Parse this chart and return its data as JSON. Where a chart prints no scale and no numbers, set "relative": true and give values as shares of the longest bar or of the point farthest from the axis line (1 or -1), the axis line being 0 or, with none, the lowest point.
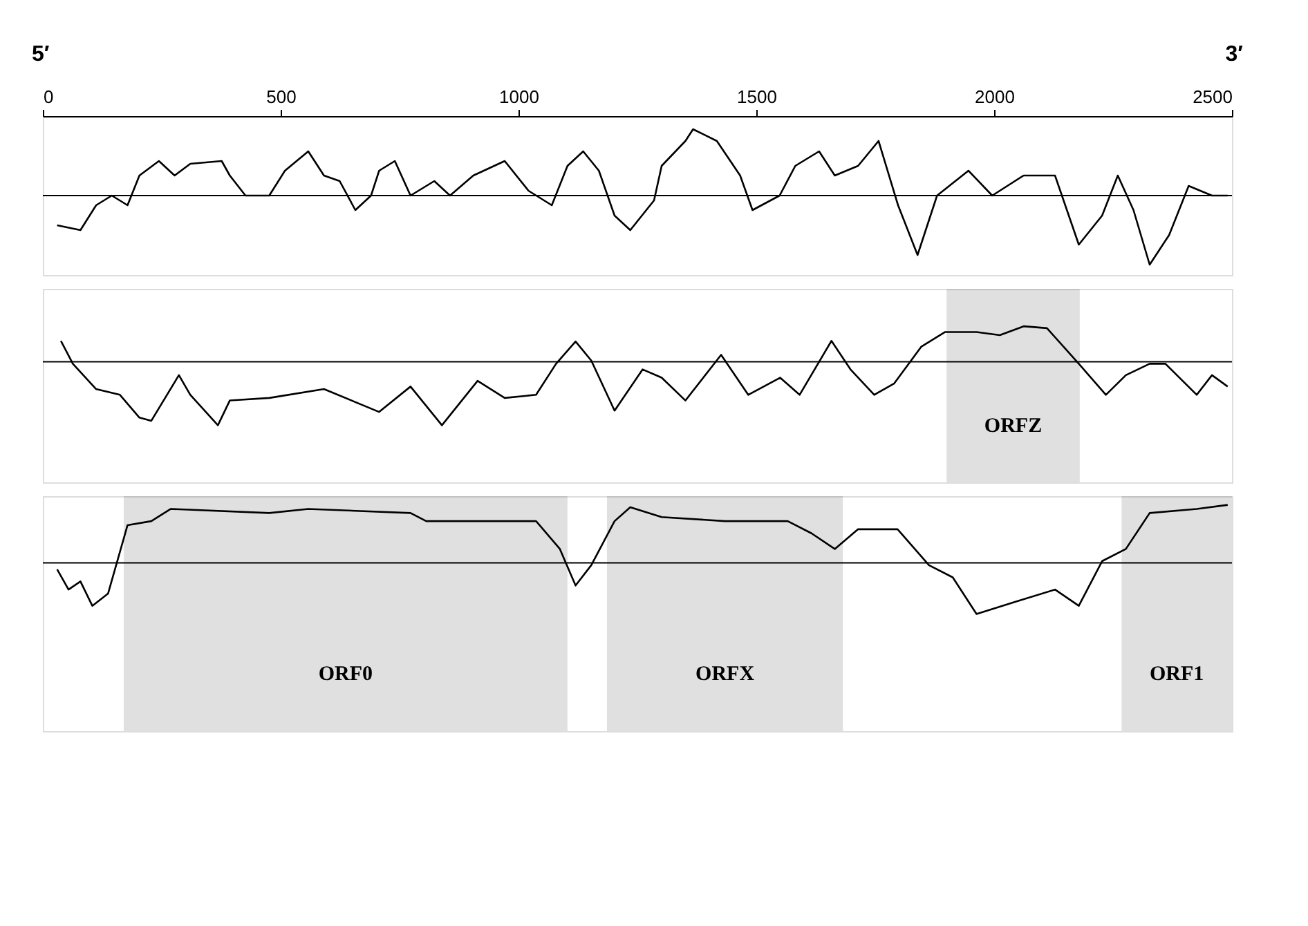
{
  "chart_data": [
    {
      "type": "line",
      "relative": true,
      "xlim": [
        0,
        2500
      ],
      "xticks": [
        0,
        500,
        1000,
        1500,
        2000,
        2500
      ],
      "tick_labels": "x",
      "grid": false,
      "marker": "none",
      "line_style": "solid",
      "annotations": [
        "5′",
        "3′"
      ],
      "ref_lines": [
        {
          "axis": "y",
          "value": 0,
          "label": null,
          "color": "#000000"
        }
      ],
      "series": [
        {
          "color": "#000000",
          "x": [
            30,
            79,
            112,
            145,
            178,
            203,
            244,
            277,
            310,
            376,
            393,
            426,
            476,
            509,
            558,
            591,
            624,
            657,
            690,
            707,
            740,
            773,
            823,
            856,
            905,
            971,
            1021,
            1070,
            1103,
            1136,
            1169,
            1202,
            1235,
            1285,
            1301,
            1351,
            1367,
            1417,
            1466,
            1492,
            1549,
            1582,
            1632,
            1665,
            1714,
            1757,
            1798,
            1839,
            1880,
            1946,
            1996,
            2062,
            2128,
            2178,
            2227,
            2260,
            2293,
            2327,
            2368,
            2409,
            2458,
            2491
          ],
          "values": [
            -0.43,
            -0.5,
            -0.14,
            0,
            -0.14,
            0.29,
            0.5,
            0.29,
            0.46,
            0.5,
            0.29,
            0,
            0,
            0.36,
            0.64,
            0.29,
            0.21,
            -0.21,
            0,
            0.36,
            0.5,
            0,
            0.21,
            0,
            0.29,
            0.5,
            0.07,
            -0.14,
            0.43,
            0.64,
            0.36,
            -0.29,
            -0.5,
            -0.07,
            0.43,
            0.79,
            0.96,
            0.79,
            0.29,
            -0.21,
            0,
            0.43,
            0.64,
            0.29,
            0.43,
            0.79,
            -0.14,
            -0.86,
            0,
            0.36,
            0,
            0.29,
            0.29,
            -0.71,
            -0.29,
            0.29,
            -0.21,
            -1,
            -0.57,
            0.14,
            0,
            0
          ]
        }
      ]
    },
    {
      "type": "line",
      "relative": true,
      "xlim": [
        0,
        2500
      ],
      "tick_labels": false,
      "grid": false,
      "marker": "none",
      "line_style": "solid",
      "ref_lines": [
        {
          "axis": "y",
          "value": 0,
          "label": null,
          "color": "#000000"
        }
      ],
      "bands": [
        {
          "axis": "x",
          "from": 1900,
          "to": 2180,
          "label": "ORFZ",
          "color": "#000000"
        }
      ],
      "series": [
        {
          "color": "#000000",
          "x": [
            38,
            63,
            112,
            162,
            203,
            228,
            286,
            310,
            368,
            393,
            476,
            591,
            707,
            773,
            839,
            914,
            971,
            1037,
            1079,
            1120,
            1153,
            1202,
            1261,
            1301,
            1351,
            1426,
            1483,
            1550,
            1591,
            1658,
            1698,
            1748,
            1790,
            1847,
            1897,
            1963,
            2012,
            2062,
            2111,
            2178,
            2235,
            2277,
            2327,
            2360,
            2426,
            2458,
            2491
          ],
          "values": [
            0.33,
            -0.03,
            -0.43,
            -0.52,
            -0.88,
            -0.93,
            -0.21,
            -0.52,
            -1,
            -0.61,
            -0.57,
            -0.43,
            -0.79,
            -0.39,
            -1,
            -0.3,
            -0.57,
            -0.52,
            -0.03,
            0.32,
            0.02,
            -0.77,
            -0.12,
            -0.25,
            -0.61,
            0.11,
            -0.52,
            -0.25,
            -0.52,
            0.33,
            -0.12,
            -0.52,
            -0.34,
            0.24,
            0.47,
            0.47,
            0.42,
            0.56,
            0.53,
            -0.03,
            -0.52,
            -0.21,
            -0.03,
            -0.03,
            -0.52,
            -0.21,
            -0.39
          ]
        }
      ]
    },
    {
      "type": "line",
      "relative": true,
      "xlim": [
        0,
        2500
      ],
      "tick_labels": false,
      "grid": false,
      "marker": "none",
      "line_style": "solid",
      "ref_lines": [
        {
          "axis": "y",
          "value": 0,
          "label": null,
          "color": "#000000"
        }
      ],
      "bands": [
        {
          "axis": "x",
          "from": 170,
          "to": 1103,
          "label": "ORF0",
          "color": "#000000"
        },
        {
          "axis": "x",
          "from": 1186,
          "to": 1682,
          "label": "ORFX",
          "color": "#000000"
        },
        {
          "axis": "x",
          "from": 2268,
          "to": 2500,
          "label": "ORF1",
          "color": "#000000"
        }
      ],
      "series": [
        {
          "color": "#000000",
          "x": [
            30,
            54,
            79,
            104,
            137,
            178,
            228,
            269,
            476,
            558,
            773,
            806,
            1037,
            1087,
            1120,
            1153,
            1202,
            1235,
            1301,
            1434,
            1566,
            1616,
            1665,
            1714,
            1797,
            1863,
            1913,
            1963,
            2045,
            2128,
            2178,
            2227,
            2277,
            2327,
            2426,
            2491
          ],
          "values": [
            -0.11,
            -0.46,
            -0.32,
            -0.74,
            -0.53,
            0.65,
            0.72,
            0.93,
            0.86,
            0.93,
            0.86,
            0.72,
            0.72,
            0.24,
            -0.39,
            -0.04,
            0.72,
            0.96,
            0.79,
            0.72,
            0.72,
            0.51,
            0.24,
            0.58,
            0.58,
            -0.04,
            -0.25,
            -0.88,
            -0.67,
            -0.46,
            -0.74,
            0.03,
            0.24,
            0.86,
            0.93,
            1
          ]
        }
      ]
    }
  ]
}
